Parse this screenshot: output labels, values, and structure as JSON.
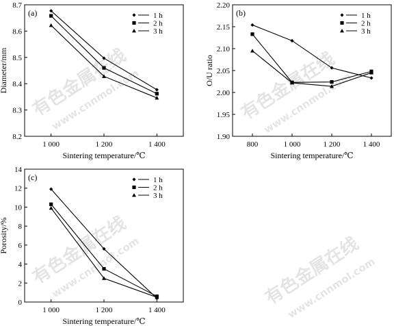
{
  "watermark": {
    "cn": "有色金属在线",
    "url": "www.cnnmol.com"
  },
  "chart_data": [
    {
      "type": "line",
      "panel": "(a)",
      "xlabel": "Sintering temperature/℃",
      "ylabel": "Diameter/mm",
      "x": [
        1000,
        1200,
        1400
      ],
      "xlim": [
        900,
        1500
      ],
      "xticks": [
        1000,
        1200,
        1400
      ],
      "xtick_labels": [
        "1 000",
        "1 200",
        "1 400"
      ],
      "ylim": [
        8.2,
        8.7
      ],
      "yticks": [
        8.2,
        8.3,
        8.4,
        8.5,
        8.6,
        8.7
      ],
      "ytick_labels": [
        "8.2",
        "8.3",
        "8.4",
        "8.5",
        "8.6",
        "8.7"
      ],
      "legend_position": "top-right",
      "series": [
        {
          "name": "1 h",
          "marker": "diamond",
          "values": [
            8.677,
            8.497,
            8.377
          ]
        },
        {
          "name": "2 h",
          "marker": "square",
          "values": [
            8.658,
            8.46,
            8.362
          ]
        },
        {
          "name": "3 h",
          "marker": "triangle",
          "values": [
            8.622,
            8.428,
            8.346
          ]
        }
      ]
    },
    {
      "type": "line",
      "panel": "(b)",
      "xlabel": "Sintering temperature/℃",
      "ylabel": "O/U ratio",
      "x": [
        800,
        1000,
        1200,
        1400
      ],
      "xlim": [
        700,
        1500
      ],
      "xticks": [
        800,
        1000,
        1200,
        1400
      ],
      "xtick_labels": [
        "800",
        "1 000",
        "1 200",
        "1 400"
      ],
      "ylim": [
        1.9,
        2.2
      ],
      "yticks": [
        1.9,
        1.95,
        2.0,
        2.05,
        2.1,
        2.15,
        2.2
      ],
      "ytick_labels": [
        "1.90",
        "1.95",
        "2.00",
        "2.05",
        "2.10",
        "2.15",
        "2.20"
      ],
      "legend_position": "top-right",
      "series": [
        {
          "name": "1 h",
          "marker": "diamond",
          "values": [
            2.154,
            2.118,
            2.056,
            2.033
          ]
        },
        {
          "name": "2 h",
          "marker": "square",
          "values": [
            2.133,
            2.023,
            2.024,
            2.048
          ]
        },
        {
          "name": "3 h",
          "marker": "triangle",
          "values": [
            2.095,
            2.022,
            2.014,
            2.045
          ]
        }
      ]
    },
    {
      "type": "line",
      "panel": "(c)",
      "xlabel": "Sintering temperature/℃",
      "ylabel": "Porosity/%",
      "x": [
        1000,
        1200,
        1400
      ],
      "xlim": [
        900,
        1500
      ],
      "xticks": [
        1000,
        1200,
        1400
      ],
      "xtick_labels": [
        "1 000",
        "1 200",
        "1 400"
      ],
      "ylim": [
        0,
        14
      ],
      "yticks": [
        0,
        2,
        4,
        6,
        8,
        10,
        12,
        14
      ],
      "ytick_labels": [
        "0",
        "2",
        "4",
        "6",
        "8",
        "10",
        "12",
        "14"
      ],
      "legend_position": "top-right",
      "series": [
        {
          "name": "1 h",
          "marker": "diamond",
          "values": [
            11.9,
            5.6,
            0.4
          ]
        },
        {
          "name": "2 h",
          "marker": "square",
          "values": [
            10.3,
            3.5,
            0.6
          ]
        },
        {
          "name": "3 h",
          "marker": "triangle",
          "values": [
            9.9,
            2.5,
            0.5
          ]
        }
      ]
    }
  ]
}
